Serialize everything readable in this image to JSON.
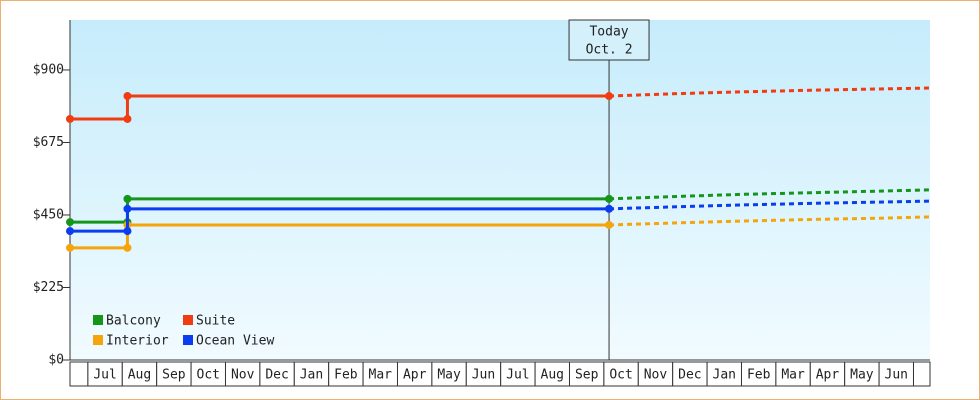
{
  "chart_data": {
    "type": "step-line",
    "x": [
      -0.52,
      1.15,
      1.15,
      15.15
    ],
    "forecast_x": [
      15.15,
      17,
      19,
      21,
      23,
      24.48
    ],
    "xlim": [
      -0.52,
      24.48
    ],
    "categories": [
      "Jul",
      "Aug",
      "Sep",
      "Oct",
      "Nov",
      "Dec",
      "Jan",
      "Feb",
      "Mar",
      "Apr",
      "May",
      "Jun",
      "Jul",
      "Aug",
      "Sep",
      "Oct",
      "Nov",
      "Dec",
      "Jan",
      "Feb",
      "Mar",
      "Apr",
      "May",
      "Jun"
    ],
    "ylim": [
      0,
      1055
    ],
    "yticks": [
      {
        "value": 0,
        "label": "$0"
      },
      {
        "value": 225,
        "label": "$225"
      },
      {
        "value": 450,
        "label": "$450"
      },
      {
        "value": 675,
        "label": "$675"
      },
      {
        "value": 900,
        "label": "$900"
      }
    ],
    "today": {
      "x": 15.15,
      "label": [
        "Today",
        "Oct. 2"
      ]
    },
    "series": [
      {
        "name": "Balcony",
        "color": "#15961a",
        "values": [
          428,
          428,
          500,
          500
        ],
        "forecast": [
          500,
          507,
          514,
          519,
          524,
          528
        ]
      },
      {
        "name": "Suite",
        "color": "#f03c10",
        "values": [
          748,
          748,
          819,
          819
        ],
        "forecast": [
          819,
          826,
          832,
          837,
          841,
          844
        ]
      },
      {
        "name": "Interior",
        "color": "#f5a50a",
        "values": [
          348,
          348,
          419,
          419
        ],
        "forecast": [
          419,
          425,
          431,
          436,
          440,
          444
        ]
      },
      {
        "name": "Ocean View",
        "color": "#0a3cf0",
        "values": [
          400,
          400,
          469,
          469
        ],
        "forecast": [
          469,
          475,
          481,
          486,
          490,
          493
        ]
      }
    ]
  }
}
